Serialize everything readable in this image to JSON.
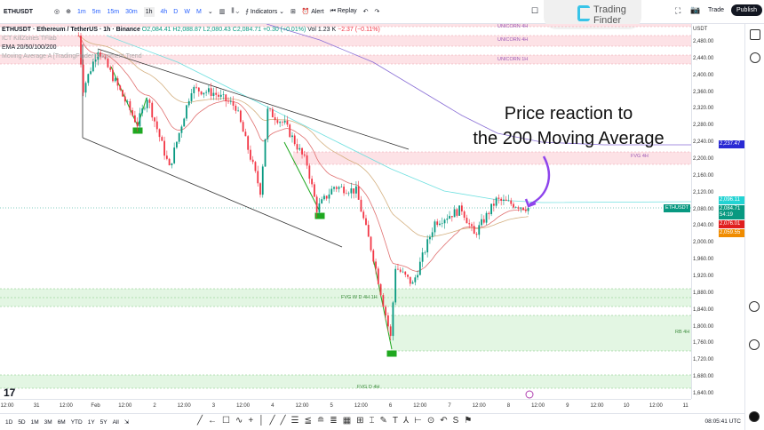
{
  "toolbar": {
    "symbol": "ETHUSDT",
    "timeframes": [
      "1m",
      "5m",
      "15m",
      "30m",
      "1h",
      "4h",
      "D",
      "W",
      "M"
    ],
    "active_timeframe": "1h",
    "indicators": "Indicators",
    "alert": "Alert",
    "replay": "Replay",
    "trade": "Trade",
    "publish": "Publish"
  },
  "logo": {
    "text": "Trading Finder"
  },
  "legend": {
    "title": "ETHUSDT · Ethereum / TetherUS · 1h · Binance",
    "ohlc": "O2,084.41 H2,088.87 L2,080.43 C2,084.71 +0.30 (+0.01%)",
    "vol": "Vol 1.23 K",
    "vol_chg": "−2.37 (−0.11%)",
    "ind1": "ICT KillZones TFlab",
    "ind2": "EMA 20/50/100/200",
    "ind3": "Moving Average A [TradingFinder] Alignment Trend"
  },
  "zones": {
    "unicorn": "UNICORN 4H",
    "unicorn1h": "UNICORN 1H",
    "fvg4h": "FVG 4H",
    "fvgwd": "FVG W D 4H 1H",
    "rb4h": "RB 4H",
    "fvgd4h": "FVG D 4H"
  },
  "annotation": {
    "line1": "Price reaction to",
    "line2": "the 200 Moving Average",
    "arrow_color": "#8e44ec"
  },
  "axis": {
    "currency": "USDT",
    "ticks": [
      "2,480.00",
      "2,440.00",
      "2,400.00",
      "2,360.00",
      "2,320.00",
      "2,280.00",
      "2,240.00",
      "2,200.00",
      "2,160.00",
      "2,120.00",
      "2,080.00",
      "2,040.00",
      "2,000.00",
      "1,960.00",
      "1,920.00",
      "1,880.00",
      "1,840.00",
      "1,800.00",
      "1,760.00",
      "1,720.00",
      "1,680.00",
      "1,640.00"
    ],
    "tags": [
      {
        "value": "2,237.47",
        "color": "#2a2ad4"
      },
      {
        "value": "2,096.11",
        "color": "#22d3d3"
      },
      {
        "value": "2,084.71",
        "sub": "54:19",
        "color": "#089981"
      },
      {
        "value": "2,076.01",
        "color": "#e01e1e"
      },
      {
        "value": "2,059.55",
        "color": "#f08c00"
      }
    ],
    "symbol_tag": "ETHUSDT"
  },
  "xaxis": [
    "12:00",
    "31",
    "12:00",
    "Feb",
    "12:00",
    "2",
    "12:00",
    "3",
    "12:00",
    "4",
    "12:00",
    "5",
    "12:00",
    "6",
    "12:00",
    "7",
    "12:00",
    "8",
    "12:00",
    "9",
    "12:00",
    "10",
    "12:00",
    "11"
  ],
  "price_path": [
    [
      "01-31 17:00",
      2497
    ],
    [
      "01-31 19:00",
      2370
    ],
    [
      "02-01 01:00",
      2465
    ],
    [
      "02-01 17:00",
      2285
    ],
    [
      "02-01 21:00",
      2350
    ],
    [
      "02-02 06:00",
      2180
    ],
    [
      "02-02 15:00",
      2370
    ],
    [
      "02-03 00:00",
      2360
    ],
    [
      "02-03 09:00",
      2327
    ],
    [
      "02-03 19:00",
      2126
    ],
    [
      "02-03 22:00",
      2317
    ],
    [
      "02-04 05:00",
      2285
    ],
    [
      "02-04 14:00",
      2190
    ],
    [
      "02-04 18:00",
      2083
    ],
    [
      "02-05 01:00",
      2136
    ],
    [
      "02-05 10:00",
      2126
    ],
    [
      "02-05 17:00",
      1967
    ],
    [
      "02-06 00:00",
      1776
    ],
    [
      "02-06 02:00",
      1945
    ],
    [
      "02-06 09:00",
      1903
    ],
    [
      "02-06 18:00",
      2051
    ],
    [
      "02-07 05:00",
      2083
    ],
    [
      "02-07 10:00",
      2020
    ],
    [
      "02-07 19:00",
      2104
    ],
    [
      "02-08 09:00",
      2084
    ]
  ],
  "colors": {
    "up": "#089981",
    "down": "#f23645"
  },
  "bottom": {
    "ranges": [
      "1D",
      "5D",
      "1M",
      "3M",
      "6M",
      "YTD",
      "1Y",
      "5Y",
      "All"
    ],
    "time": "08:05:41 UTC"
  }
}
